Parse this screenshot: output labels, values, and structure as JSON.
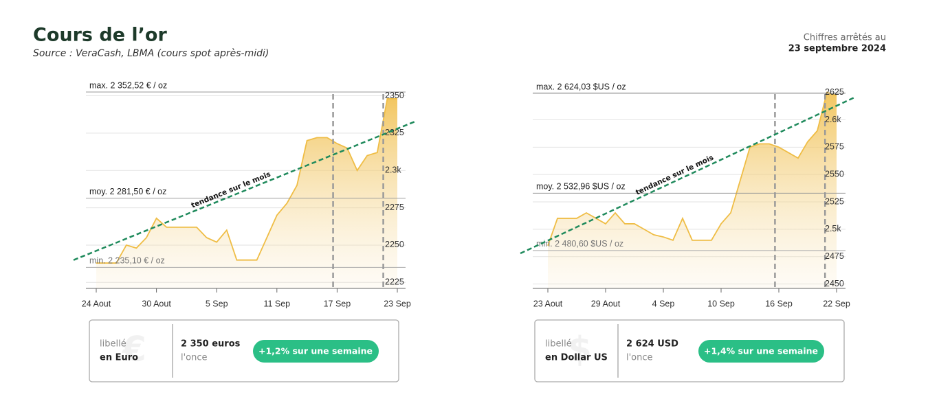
{
  "header": {
    "title": "Cours de l’or",
    "subtitle": "Source : VeraCash, LBMA (cours spot après-midi)",
    "note": "Chiffres arrêtés au",
    "date": "23 septembre 2024"
  },
  "chart_data": [
    {
      "type": "line",
      "color": "#efbd45",
      "trend_label": "tendance sur le mois",
      "trend_values": [
        2240,
        2333
      ],
      "categories": [
        "24 Aout",
        null,
        null,
        null,
        null,
        null,
        "30 Aout",
        null,
        null,
        null,
        null,
        null,
        "5 Sep",
        null,
        null,
        null,
        null,
        null,
        "11 Sep",
        null,
        null,
        null,
        null,
        null,
        "17 Sep",
        null,
        null,
        null,
        null,
        null,
        "23 Sep"
      ],
      "series": [
        {
          "name": "EUR",
          "color": "#efbd45",
          "values": [
            2238,
            2238,
            2238,
            2250,
            2248,
            2255,
            2268,
            2262,
            2262,
            2262,
            2262,
            2255,
            2252,
            2260,
            2240,
            2240,
            2240,
            2255,
            2270,
            2278,
            2290,
            2320,
            2322,
            2322,
            2318,
            2315,
            2300,
            2310,
            2312,
            2348,
            2348
          ]
        }
      ],
      "ylim": [
        2221,
        2353
      ],
      "yticks": [
        2225,
        2250,
        2275,
        {
          "value": 2300,
          "label": "2.3k"
        },
        2325,
        2350
      ],
      "refs": [
        {
          "value": 2352.52,
          "label": "max. 2 352,52 € / oz"
        },
        {
          "value": 2281.5,
          "label": "moy. 2 281,50 € / oz"
        },
        {
          "value": 2235.1,
          "label": "min. 2 235,10 € / oz"
        }
      ],
      "box": {
        "symbol": "€",
        "kind": "libellé",
        "currency": "en Euro",
        "price": "2 350 euros",
        "unit": "l'once",
        "change": "+1,2% sur une semaine"
      }
    },
    {
      "type": "line",
      "color": "#efbd45",
      "trend_label": "tendance sur le mois",
      "trend_values": [
        2478,
        2621
      ],
      "categories": [
        "23 Aout",
        null,
        null,
        null,
        null,
        null,
        "29 Aout",
        null,
        null,
        null,
        null,
        null,
        "4 Sep",
        null,
        null,
        null,
        null,
        null,
        "10 Sep",
        null,
        null,
        null,
        null,
        null,
        "16 Sep",
        null,
        null,
        null,
        null,
        null,
        "22 Sep"
      ],
      "series": [
        {
          "name": "USD",
          "color": "#efbd45",
          "values": [
            2485,
            2510,
            2510,
            2510,
            2515,
            2510,
            2505,
            2515,
            2505,
            2505,
            2500,
            2495,
            2493,
            2490,
            2510,
            2490,
            2490,
            2490,
            2505,
            2515,
            2545,
            2575,
            2578,
            2578,
            2575,
            2570,
            2565,
            2580,
            2590,
            2625,
            2622
          ]
        }
      ],
      "ylim": [
        2446,
        2626
      ],
      "yticks": [
        2450,
        2475,
        {
          "value": 2500,
          "label": "2.5k"
        },
        2525,
        2550,
        2575,
        {
          "value": 2600,
          "label": "2.6k"
        },
        2625
      ],
      "refs": [
        {
          "value": 2624.03,
          "label": "max. 2 624,03 $US / oz"
        },
        {
          "value": 2532.96,
          "label": "moy. 2 532,96 $US / oz"
        },
        {
          "value": 2480.6,
          "label": "min. 2 480,60 $US / oz"
        }
      ],
      "box": {
        "symbol": "$",
        "kind": "libellé",
        "currency": "en Dollar US",
        "price": "2 624  USD",
        "unit": "l'once",
        "change": "+1,4% sur une semaine"
      }
    }
  ]
}
